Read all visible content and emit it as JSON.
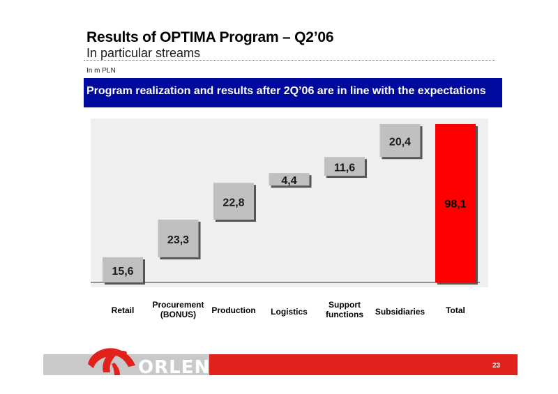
{
  "header": {
    "title": "Results of OPTIMA Program – Q2’06",
    "subtitle": "In particular streams",
    "unit": "In m PLN"
  },
  "banner": {
    "text": "Program realization and results after 2Q’06 are in line with the expectations"
  },
  "chart_data": {
    "type": "bar",
    "subtype": "waterfall",
    "title": "",
    "xlabel": "",
    "ylabel": "",
    "categories": [
      "Retail",
      "Procurement\n(BONUS)",
      "Production",
      "Logistics",
      "Support\nfunctions",
      "Subsidiaries",
      "Total"
    ],
    "values": [
      15.6,
      23.3,
      22.8,
      4.4,
      11.6,
      20.4,
      98.1
    ],
    "value_labels": [
      "15,6",
      "23,3",
      "22,8",
      "4,4",
      "11,6",
      "20,4",
      "98,1"
    ],
    "total_index": 6,
    "ylim": [
      0,
      98.1
    ],
    "grid": false,
    "legend": "none",
    "colors": {
      "step": "#c0c0c0",
      "total": "#ff0000",
      "plot_bg": "#efefef",
      "shadow": "#555555"
    }
  },
  "footer": {
    "brand": "ORLEN",
    "page_number": "23",
    "colors": {
      "grey": "#c9c9c9",
      "red": "#e1211b"
    }
  }
}
